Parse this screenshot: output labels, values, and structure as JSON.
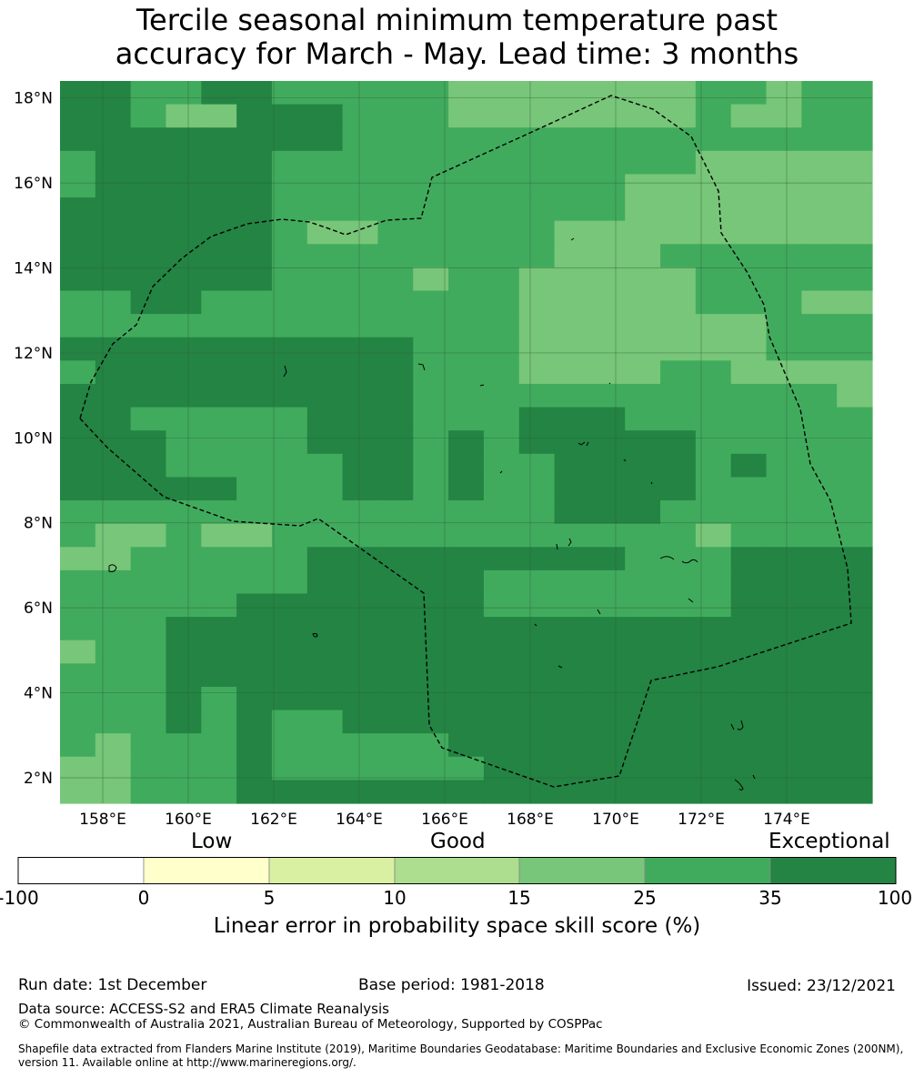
{
  "title": {
    "line1": "Tercile seasonal minimum temperature past",
    "line2": "accuracy for March - May. Lead time: 3 months"
  },
  "map": {
    "lon_range": [
      157.0,
      176.0
    ],
    "lat_range": [
      1.4,
      18.4
    ],
    "x_ticks": [
      "158°E",
      "160°E",
      "162°E",
      "164°E",
      "166°E",
      "168°E",
      "170°E",
      "172°E",
      "174°E"
    ],
    "y_ticks": [
      "18°N",
      "16°N",
      "14°N",
      "12°N",
      "10°N",
      "8°N",
      "6°N",
      "4°N",
      "2°N"
    ],
    "colors": {
      "c4": "#78c679",
      "c5": "#41ab5d",
      "c6": "#238443",
      "grid": "#2f5e3a",
      "boundary": "#000000"
    }
  },
  "colorbar": {
    "category_labels": [
      "Low",
      "Good",
      "Exceptional"
    ],
    "tick_labels": [
      "-100",
      "0",
      "5",
      "10",
      "15",
      "25",
      "35",
      "100"
    ],
    "colors": [
      "#ffffff",
      "#ffffcc",
      "#d9f0a3",
      "#addd8e",
      "#78c679",
      "#41ab5d",
      "#238443"
    ],
    "title": "Linear error in probability space skill score (%)"
  },
  "footer": {
    "run_date": "Run date: 1st December",
    "base_period": "Base period: 1981-2018",
    "issued": "Issued: 23/12/2021",
    "data_source": "Data source: ACCESS-S2 and ERA5 Climate Reanalysis",
    "copyright": "© Commonwealth of Australia 2021, Australian Bureau of Meteorology, Supported by COSPPac",
    "shapefile_note": "Shapefile data extracted from Flanders Marine Institute (2019), Maritime Boundaries Geodatabase: Maritime Boundaries and Exclusive Economic Zones (200NM), version 11. Available online at http://www.marineregions.org/."
  }
}
